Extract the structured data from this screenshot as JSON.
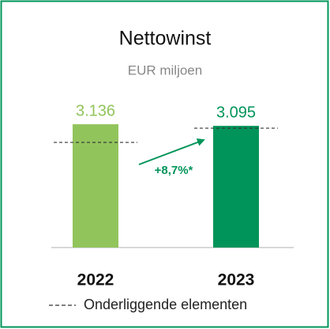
{
  "chart_data": {
    "type": "bar",
    "title": "Nettowinst",
    "subtitle": "EUR miljoen",
    "categories": [
      "2022",
      "2023"
    ],
    "series": [
      {
        "name": "Nettowinst",
        "colors": [
          "#92c45c",
          "#00945a"
        ],
        "values": [
          3136,
          3095
        ],
        "value_labels": [
          "3.136",
          "3.095"
        ]
      },
      {
        "name": "Onderliggende elementen",
        "color": "#333333",
        "line_style": "dashed",
        "values": [
          2674,
          3036
        ]
      }
    ],
    "annotation": "+8,7%*",
    "annotation_color": "#00945a",
    "ylim": [
      0,
      3500
    ],
    "legend": "bottom"
  }
}
